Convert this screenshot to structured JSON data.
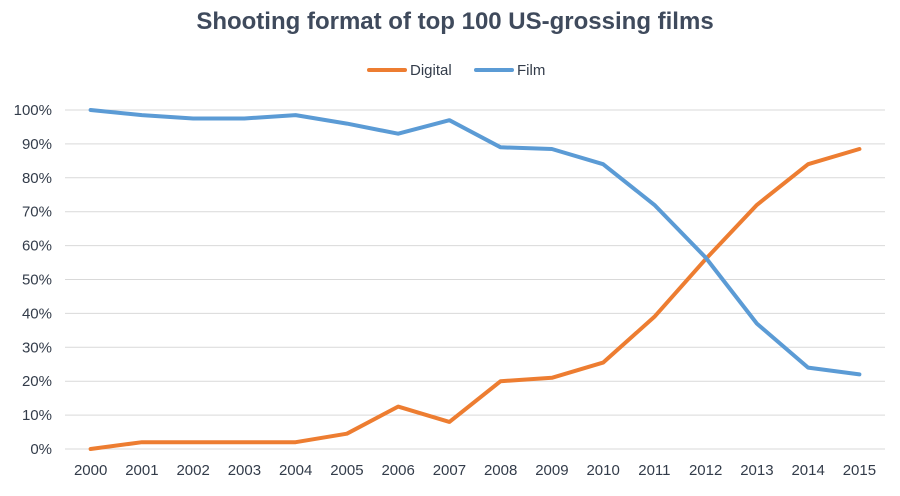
{
  "chart_data": {
    "type": "line",
    "title": "Shooting format of top 100 US-grossing films",
    "xlabel": "",
    "ylabel": "",
    "x": [
      "2000",
      "2001",
      "2002",
      "2003",
      "2004",
      "2005",
      "2006",
      "2007",
      "2008",
      "2009",
      "2010",
      "2011",
      "2012",
      "2013",
      "2014",
      "2015"
    ],
    "ylim": [
      0,
      100
    ],
    "yticks": [
      "0%",
      "10%",
      "20%",
      "30%",
      "40%",
      "50%",
      "60%",
      "70%",
      "80%",
      "90%",
      "100%"
    ],
    "grid": true,
    "legend_position": "top-center",
    "series": [
      {
        "name": "Digital",
        "color": "#ed7d31",
        "values": [
          0,
          2,
          2,
          2,
          2,
          4.5,
          12.5,
          8,
          20,
          21,
          25.5,
          39,
          56,
          72,
          84,
          88.5
        ]
      },
      {
        "name": "Film",
        "color": "#5b9bd5",
        "values": [
          100,
          98.5,
          97.5,
          97.5,
          98.5,
          96,
          93,
          97,
          89,
          88.5,
          84,
          72,
          56.5,
          37,
          24,
          22
        ]
      }
    ]
  }
}
